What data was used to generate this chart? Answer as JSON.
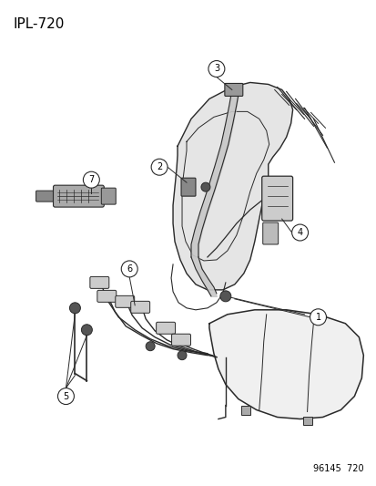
{
  "title": "IPL-720",
  "footer": "96145  720",
  "background_color": "#ffffff",
  "line_color": "#2a2a2a",
  "text_color": "#000000",
  "fig_width": 4.14,
  "fig_height": 5.33,
  "dpi": 100
}
